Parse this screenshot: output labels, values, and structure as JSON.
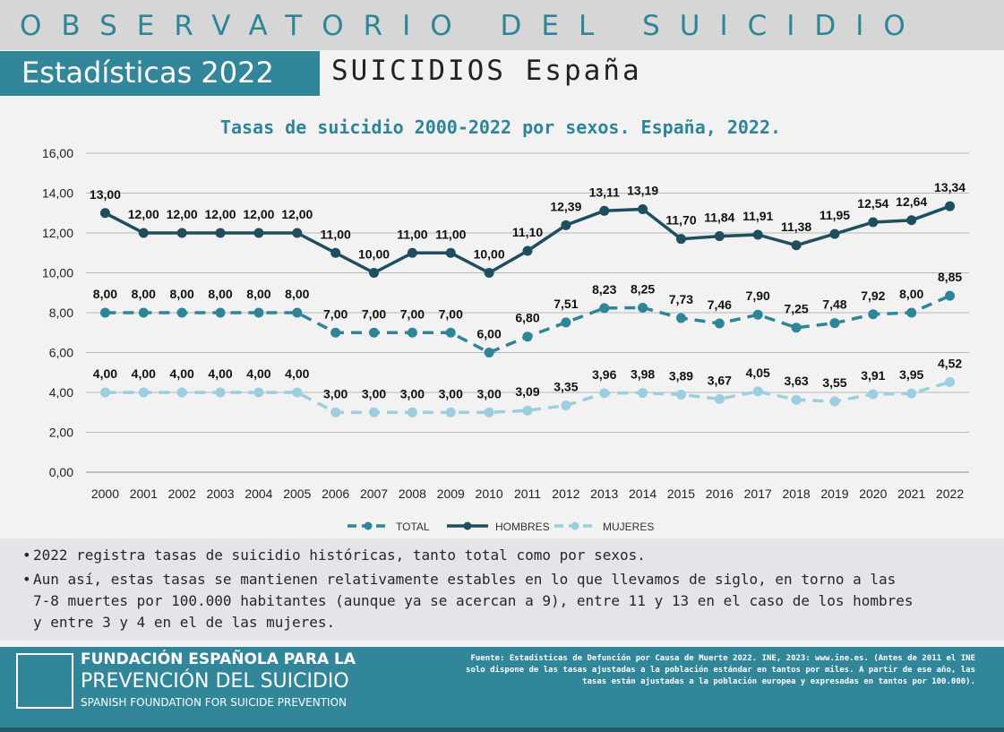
{
  "header": {
    "top_title": "OBSERVATORIO DEL SUICIDIO",
    "badge": "Estadísticas 2022",
    "subtitle": "SUICIDIOS España"
  },
  "colors": {
    "accent": "#32869a",
    "total": "#2e8597",
    "hombres": "#1f4e5f",
    "mujeres": "#9ccee0"
  },
  "chart_data": {
    "type": "line",
    "title": "Tasas de suicidio 2000-2022 por sexos. España, 2022.",
    "categories": [
      "2000",
      "2001",
      "2002",
      "2003",
      "2004",
      "2005",
      "2006",
      "2007",
      "2008",
      "2009",
      "2010",
      "2011",
      "2012",
      "2013",
      "2014",
      "2015",
      "2016",
      "2017",
      "2018",
      "2019",
      "2020",
      "2021",
      "2022"
    ],
    "ylim": [
      0,
      16
    ],
    "yticks": [
      "0,00",
      "2,00",
      "4,00",
      "6,00",
      "8,00",
      "10,00",
      "12,00",
      "14,00",
      "16,00"
    ],
    "grid": true,
    "legend_position": "bottom",
    "series": [
      {
        "name": "TOTAL",
        "style": "dashed",
        "values": [
          8.0,
          8.0,
          8.0,
          8.0,
          8.0,
          8.0,
          7.0,
          7.0,
          7.0,
          7.0,
          6.0,
          6.8,
          7.51,
          8.23,
          8.25,
          7.73,
          7.46,
          7.9,
          7.25,
          7.48,
          7.92,
          8.0,
          8.85
        ],
        "labels": [
          "8,00",
          "8,00",
          "8,00",
          "8,00",
          "8,00",
          "8,00",
          "7,00",
          "7,00",
          "7,00",
          "7,00",
          "6,00",
          "6,80",
          "7,51",
          "8,23",
          "8,25",
          "7,73",
          "7,46",
          "7,90",
          "7,25",
          "7,48",
          "7,92",
          "8,00",
          "8,85"
        ]
      },
      {
        "name": "HOMBRES",
        "style": "solid",
        "values": [
          13.0,
          12.0,
          12.0,
          12.0,
          12.0,
          12.0,
          11.0,
          10.0,
          11.0,
          11.0,
          10.0,
          11.1,
          12.39,
          13.11,
          13.19,
          11.7,
          11.84,
          11.91,
          11.38,
          11.95,
          12.54,
          12.64,
          13.34
        ],
        "labels": [
          "13,00",
          "12,00",
          "12,00",
          "12,00",
          "12,00",
          "12,00",
          "11,00",
          "10,00",
          "11,00",
          "11,00",
          "10,00",
          "11,10",
          "12,39",
          "13,11",
          "13,19",
          "11,70",
          "11,84",
          "11,91",
          "11,38",
          "11,95",
          "12,54",
          "12,64",
          "13,34"
        ]
      },
      {
        "name": "MUJERES",
        "style": "dashed",
        "values": [
          4.0,
          4.0,
          4.0,
          4.0,
          4.0,
          4.0,
          3.0,
          3.0,
          3.0,
          3.0,
          3.0,
          3.09,
          3.35,
          3.96,
          3.98,
          3.89,
          3.67,
          4.05,
          3.63,
          3.55,
          3.91,
          3.95,
          4.52
        ],
        "labels": [
          "4,00",
          "4,00",
          "4,00",
          "4,00",
          "4,00",
          "4,00",
          "3,00",
          "3,00",
          "3,00",
          "3,00",
          "3,00",
          "3,09",
          "3,35",
          "3,96",
          "3,98",
          "3,89",
          "3,67",
          "4,05",
          "3,63",
          "3,55",
          "3,91",
          "3,95",
          "4,52"
        ]
      }
    ]
  },
  "notes": {
    "n1": "2022 registra tasas de suicidio históricas, tanto total como por sexos.",
    "n2_l1": "Aun así, estas tasas se mantienen relativamente estables en lo que llevamos de siglo, en torno a las",
    "n2_l2": "7-8 muertes por 100.000 habitantes (aunque ya se acercan a 9), entre 11 y 13 en el caso de los hombres",
    "n2_l3": "y entre 3 y 4 en el de las mujeres."
  },
  "footer": {
    "logo_line1": "FUNDACIÓN ESPAÑOLA PARA LA",
    "logo_line2": "PREVENCIÓN DEL SUICIDIO",
    "logo_line3": "SPANISH FOUNDATION FOR SUICIDE PREVENTION",
    "source_l1": "Fuente: Estadísticas de Defunción por Causa de Muerte 2022. INE, 2023: www.ine.es. (Antes de 2011 el INE",
    "source_l2": "solo dispone de las tasas ajustadas a la población estándar en tantos por miles. A partir de ese año, las",
    "source_l3": "tasas están ajustadas a la población europea y expresadas en tantos por 100.000)."
  }
}
